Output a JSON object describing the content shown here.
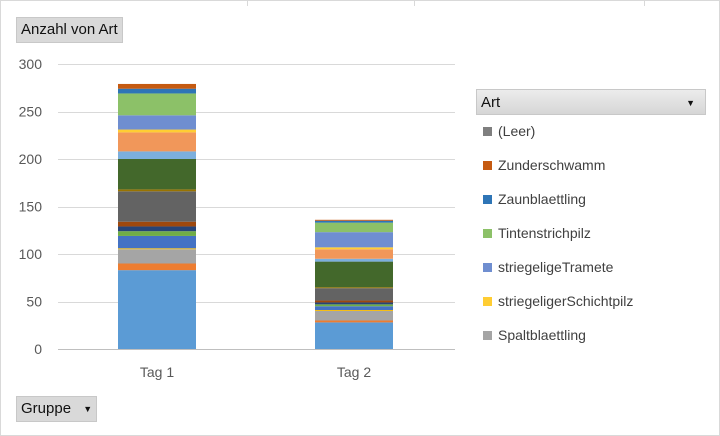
{
  "field_buttons": {
    "value_field": "Anzahl von Art",
    "axis_field": "Gruppe",
    "legend_field": "Art"
  },
  "icons": {
    "dropdown": "chevron-down-icon"
  },
  "chart_data": {
    "type": "bar",
    "stacked": true,
    "title": "",
    "xlabel": "",
    "ylabel": "",
    "categories": [
      "Tag 1",
      "Tag 2"
    ],
    "y_ticks": [
      0,
      50,
      100,
      150,
      200,
      250,
      300
    ],
    "ylim": [
      0,
      300
    ],
    "grid": true,
    "legend_position": "right",
    "legend_visible": [
      "(Leer)",
      "Zunderschwamm",
      "Zaunblaettling",
      "Tintenstrichpilz",
      "striegeligeTramete",
      "striegeligerSchichtpilz",
      "Spaltblaettling"
    ],
    "series": [
      {
        "color": "#5b9bd5",
        "values": [
          83,
          28
        ]
      },
      {
        "color": "#ed7d31",
        "values": [
          7,
          2
        ]
      },
      {
        "color": "#a5a5a5",
        "values": [
          15,
          10
        ]
      },
      {
        "color": "#ffc000",
        "values": [
          1,
          1
        ]
      },
      {
        "color": "#4472c4",
        "values": [
          13,
          4
        ]
      },
      {
        "color": "#70ad47",
        "values": [
          5,
          2
        ]
      },
      {
        "color": "#264478",
        "values": [
          5,
          2
        ]
      },
      {
        "color": "#9e480e",
        "values": [
          5,
          2
        ]
      },
      {
        "color": "#636363",
        "values": [
          32,
          13
        ]
      },
      {
        "color": "#997300",
        "values": [
          2,
          1
        ]
      },
      {
        "color": "#43682b",
        "values": [
          32,
          27
        ]
      },
      {
        "color": "#7cafdd",
        "values": [
          8,
          3
        ]
      },
      {
        "color": "#f1975a",
        "values": [
          20,
          10
        ]
      },
      {
        "color": "#ffcd33",
        "values": [
          3,
          2
        ]
      },
      {
        "color": "#6f8ed0",
        "values": [
          15,
          16
        ]
      },
      {
        "color": "#8cc168",
        "values": [
          23,
          10
        ]
      },
      {
        "color": "#2e75b6",
        "values": [
          5,
          2
        ]
      },
      {
        "color": "#c55a11",
        "values": [
          5,
          1
        ]
      },
      {
        "color": "#7f7f7f",
        "values": [
          0,
          0
        ]
      }
    ],
    "legend": [
      {
        "name": "(Leer)",
        "color": "#7f7f7f"
      },
      {
        "name": "Zunderschwamm",
        "color": "#c55a11"
      },
      {
        "name": "Zaunblaettling",
        "color": "#2e75b6"
      },
      {
        "name": "Tintenstrichpilz",
        "color": "#8cc168"
      },
      {
        "name": "striegeligeTramete",
        "color": "#6f8ed0"
      },
      {
        "name": "striegeligerSchichtpilz",
        "color": "#ffcd33"
      },
      {
        "name": "Spaltblaettling",
        "color": "#a5a5a5"
      }
    ]
  }
}
